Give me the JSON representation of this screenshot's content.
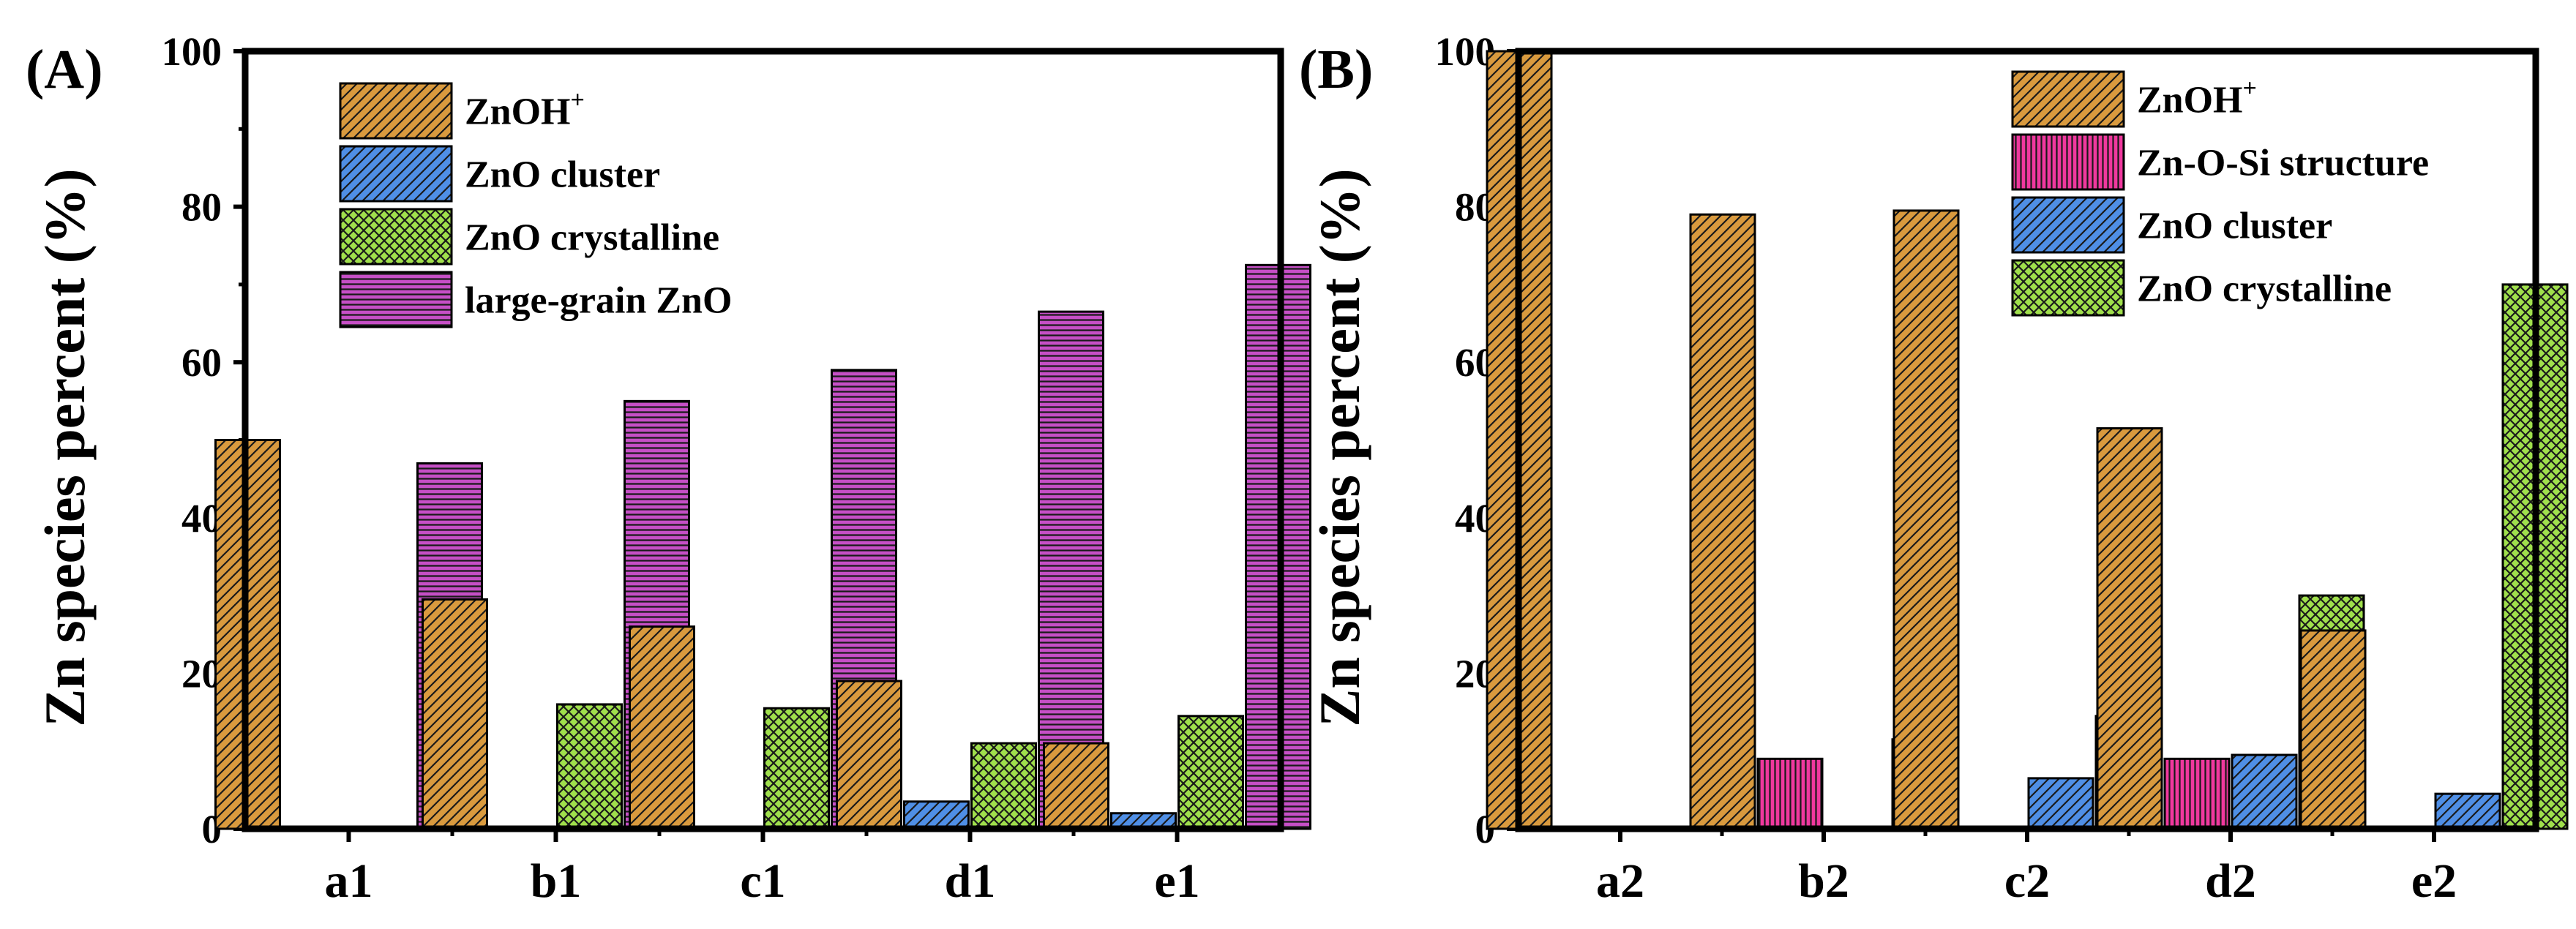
{
  "chart_data": [
    {
      "panel_label": "(A)",
      "type": "bar",
      "categories": [
        "a1",
        "b1",
        "c1",
        "d1",
        "e1"
      ],
      "ylabel": "Zn species percent (%)",
      "xlabel": "",
      "ylim": [
        0,
        100
      ],
      "yticks": [
        "0",
        "20",
        "40",
        "60",
        "80",
        "100"
      ],
      "legend_position": "top-left",
      "series": [
        {
          "name": "ZnOH",
          "superscript": "+",
          "color": "#d99a3e",
          "pattern": "diag",
          "values": [
            50,
            29.5,
            26,
            19,
            11
          ]
        },
        {
          "name": "ZnO cluster",
          "color": "#4f8fe6",
          "pattern": "diag",
          "values": [
            0,
            0,
            0,
            3.5,
            2
          ]
        },
        {
          "name": "ZnO crystalline",
          "color": "#a0e04c",
          "pattern": "cross",
          "values": [
            0,
            16,
            15.5,
            11,
            14.5
          ]
        },
        {
          "name": "large-grain ZnO",
          "color": "#c64fc6",
          "pattern": "hlines",
          "values": [
            47,
            55,
            59,
            66.5,
            72.5
          ]
        }
      ]
    },
    {
      "panel_label": "(B)",
      "type": "bar",
      "categories": [
        "a2",
        "b2",
        "c2",
        "d2",
        "e2"
      ],
      "ylabel": "Zn species percent (%)",
      "xlabel": "",
      "ylim": [
        0,
        100
      ],
      "yticks": [
        "0",
        "20",
        "40",
        "60",
        "80",
        "100"
      ],
      "legend_position": "top-right",
      "series": [
        {
          "name": "ZnOH",
          "superscript": "+",
          "color": "#d99a3e",
          "pattern": "diag",
          "values": [
            100,
            79,
            79.5,
            51.5,
            25.5
          ]
        },
        {
          "name": "Zn-O-Si structure",
          "color": "#f0389e",
          "pattern": "vlines",
          "values": [
            0,
            9,
            0,
            9,
            0
          ]
        },
        {
          "name": "ZnO cluster",
          "color": "#4f8fe6",
          "pattern": "diag",
          "values": [
            0,
            0,
            6.5,
            9.5,
            4.5
          ]
        },
        {
          "name": "ZnO crystalline",
          "color": "#a0e04c",
          "pattern": "cross",
          "values": [
            0,
            11.5,
            14.5,
            30,
            70
          ]
        }
      ]
    }
  ]
}
